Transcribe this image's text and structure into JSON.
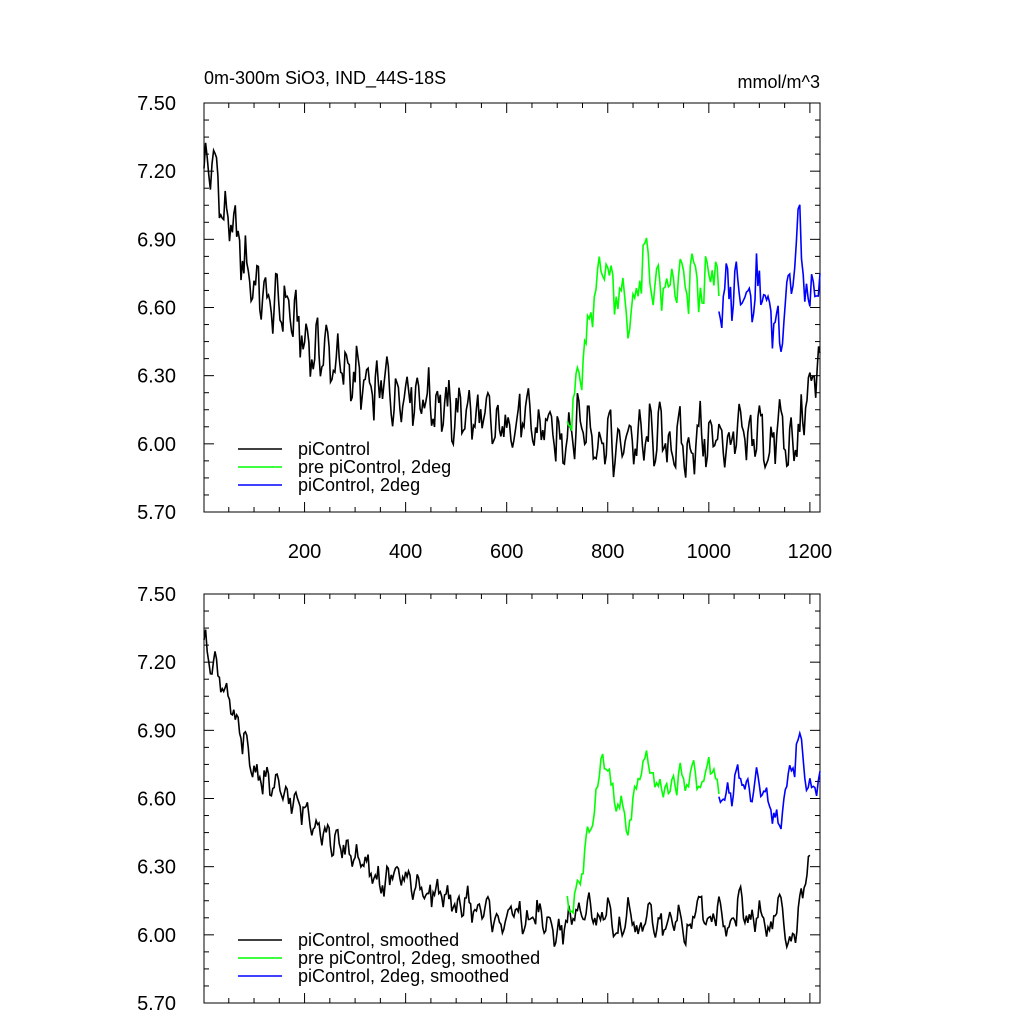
{
  "figure": {
    "title": "0m-300m SiO3, IND_44S-18S",
    "units": "mmol/m^3"
  },
  "colors": {
    "piControl": "#000000",
    "pre_2deg": "#00ff00",
    "piControl_2deg": "#0000ff"
  },
  "chart_data": [
    {
      "type": "line",
      "panel": "raw",
      "xlim": [
        1,
        1220
      ],
      "ylim": [
        5.7,
        7.5
      ],
      "x_ticks": [
        200,
        400,
        600,
        800,
        1000,
        1200
      ],
      "x_tick_labels": [
        "200",
        "400",
        "600",
        "800",
        "1000",
        "1200"
      ],
      "y_ticks": [
        5.7,
        6.0,
        6.3,
        6.6,
        6.9,
        7.2,
        7.5
      ],
      "y_tick_labels": [
        "5.70",
        "6.00",
        "6.30",
        "6.60",
        "6.90",
        "7.20",
        "7.50"
      ],
      "legend_position": "bottom-left",
      "series": [
        {
          "name": "piControl",
          "color": "#000000",
          "x": [
            1,
            20,
            40,
            60,
            80,
            100,
            120,
            140,
            160,
            180,
            200,
            220,
            240,
            260,
            280,
            300,
            320,
            340,
            360,
            380,
            400,
            420,
            440,
            460,
            480,
            500,
            520,
            540,
            560,
            580,
            600,
            620,
            640,
            660,
            680,
            700,
            720,
            740,
            760,
            780,
            800,
            820,
            840,
            860,
            880,
            900,
            920,
            940,
            960,
            980,
            1000,
            1020,
            1040,
            1060,
            1080,
            1100,
            1120,
            1140,
            1160,
            1180,
            1200,
            1220
          ],
          "y": [
            7.2,
            7.25,
            7.0,
            6.95,
            6.8,
            6.7,
            6.65,
            6.6,
            6.62,
            6.55,
            6.45,
            6.4,
            6.42,
            6.35,
            6.33,
            6.3,
            6.25,
            6.22,
            6.28,
            6.2,
            6.25,
            6.22,
            6.2,
            6.18,
            6.15,
            6.12,
            6.15,
            6.1,
            6.12,
            6.05,
            6.1,
            6.08,
            6.12,
            6.05,
            6.1,
            6.0,
            6.05,
            6.1,
            6.08,
            6.0,
            6.05,
            5.95,
            6.05,
            6.0,
            6.02,
            6.05,
            5.98,
            6.02,
            5.95,
            6.05,
            6.0,
            6.05,
            5.98,
            6.05,
            6.0,
            6.08,
            5.95,
            6.1,
            5.95,
            6.05,
            6.25,
            6.4
          ]
        },
        {
          "name": "pre piControl, 2deg",
          "color": "#00ff00",
          "x": [
            720,
            740,
            760,
            770,
            780,
            790,
            800,
            810,
            820,
            830,
            840,
            850,
            860,
            870,
            880,
            890,
            900,
            910,
            920,
            930,
            940,
            950,
            960,
            970,
            980,
            990,
            1000,
            1010,
            1020
          ],
          "y": [
            6.1,
            6.25,
            6.45,
            6.6,
            6.7,
            6.85,
            6.75,
            6.68,
            6.72,
            6.62,
            6.55,
            6.6,
            6.7,
            6.78,
            6.8,
            6.72,
            6.65,
            6.7,
            6.62,
            6.75,
            6.68,
            6.72,
            6.65,
            6.78,
            6.7,
            6.62,
            6.8,
            6.7,
            6.65
          ]
        },
        {
          "name": "piControl, 2deg",
          "color": "#0000ff",
          "x": [
            1020,
            1040,
            1060,
            1080,
            1100,
            1120,
            1140,
            1160,
            1170,
            1180,
            1190,
            1200,
            1210,
            1220
          ],
          "y": [
            6.6,
            6.68,
            6.72,
            6.65,
            6.7,
            6.58,
            6.5,
            6.72,
            6.8,
            6.95,
            6.7,
            6.6,
            6.65,
            6.75
          ]
        }
      ]
    },
    {
      "type": "line",
      "panel": "smoothed",
      "xlim": [
        1,
        1220
      ],
      "ylim": [
        5.7,
        7.5
      ],
      "x_ticks": [
        200,
        400,
        600,
        800,
        1000,
        1200
      ],
      "y_ticks": [
        5.7,
        6.0,
        6.3,
        6.6,
        6.9,
        7.2,
        7.5
      ],
      "y_tick_labels": [
        "5.70",
        "6.00",
        "6.30",
        "6.60",
        "6.90",
        "7.20",
        "7.50"
      ],
      "legend_position": "bottom-left",
      "series": [
        {
          "name": "piControl, smoothed",
          "color": "#000000",
          "x": [
            1,
            20,
            40,
            60,
            80,
            100,
            120,
            140,
            160,
            180,
            200,
            220,
            240,
            260,
            280,
            300,
            320,
            340,
            360,
            380,
            400,
            420,
            440,
            460,
            480,
            500,
            520,
            540,
            560,
            580,
            600,
            620,
            640,
            660,
            680,
            700,
            720,
            740,
            760,
            780,
            800,
            820,
            840,
            860,
            880,
            900,
            920,
            940,
            960,
            980,
            1000,
            1020,
            1040,
            1060,
            1080,
            1100,
            1120,
            1140,
            1160,
            1180,
            1200
          ],
          "y": [
            7.28,
            7.2,
            7.1,
            6.95,
            6.85,
            6.72,
            6.68,
            6.65,
            6.62,
            6.58,
            6.55,
            6.5,
            6.45,
            6.4,
            6.38,
            6.35,
            6.3,
            6.25,
            6.22,
            6.28,
            6.25,
            6.22,
            6.18,
            6.2,
            6.15,
            6.12,
            6.15,
            6.1,
            6.12,
            6.05,
            6.08,
            6.1,
            6.05,
            6.1,
            6.05,
            6.0,
            6.05,
            6.1,
            6.15,
            6.05,
            6.1,
            5.98,
            6.12,
            6.0,
            6.08,
            6.05,
            6.02,
            6.1,
            6.0,
            6.15,
            6.05,
            6.12,
            6.0,
            6.15,
            6.05,
            6.1,
            6.0,
            6.15,
            5.95,
            6.1,
            6.35
          ]
        },
        {
          "name": "pre piControl, 2deg, smoothed",
          "color": "#00ff00",
          "x": [
            720,
            740,
            760,
            770,
            780,
            790,
            800,
            810,
            820,
            830,
            840,
            850,
            860,
            870,
            880,
            890,
            900,
            910,
            920,
            930,
            940,
            950,
            960,
            970,
            980,
            990,
            1000,
            1010,
            1020
          ],
          "y": [
            6.1,
            6.2,
            6.4,
            6.55,
            6.65,
            6.8,
            6.72,
            6.62,
            6.58,
            6.52,
            6.48,
            6.55,
            6.68,
            6.72,
            6.78,
            6.7,
            6.62,
            6.68,
            6.6,
            6.7,
            6.66,
            6.72,
            6.65,
            6.74,
            6.68,
            6.64,
            6.78,
            6.7,
            6.62
          ]
        },
        {
          "name": "piControl, 2deg, smoothed",
          "color": "#0000ff",
          "x": [
            1020,
            1040,
            1060,
            1080,
            1100,
            1120,
            1140,
            1160,
            1170,
            1180,
            1190,
            1200,
            1210,
            1220
          ],
          "y": [
            6.58,
            6.62,
            6.7,
            6.62,
            6.68,
            6.55,
            6.48,
            6.72,
            6.75,
            6.88,
            6.72,
            6.62,
            6.65,
            6.72
          ]
        }
      ]
    }
  ]
}
